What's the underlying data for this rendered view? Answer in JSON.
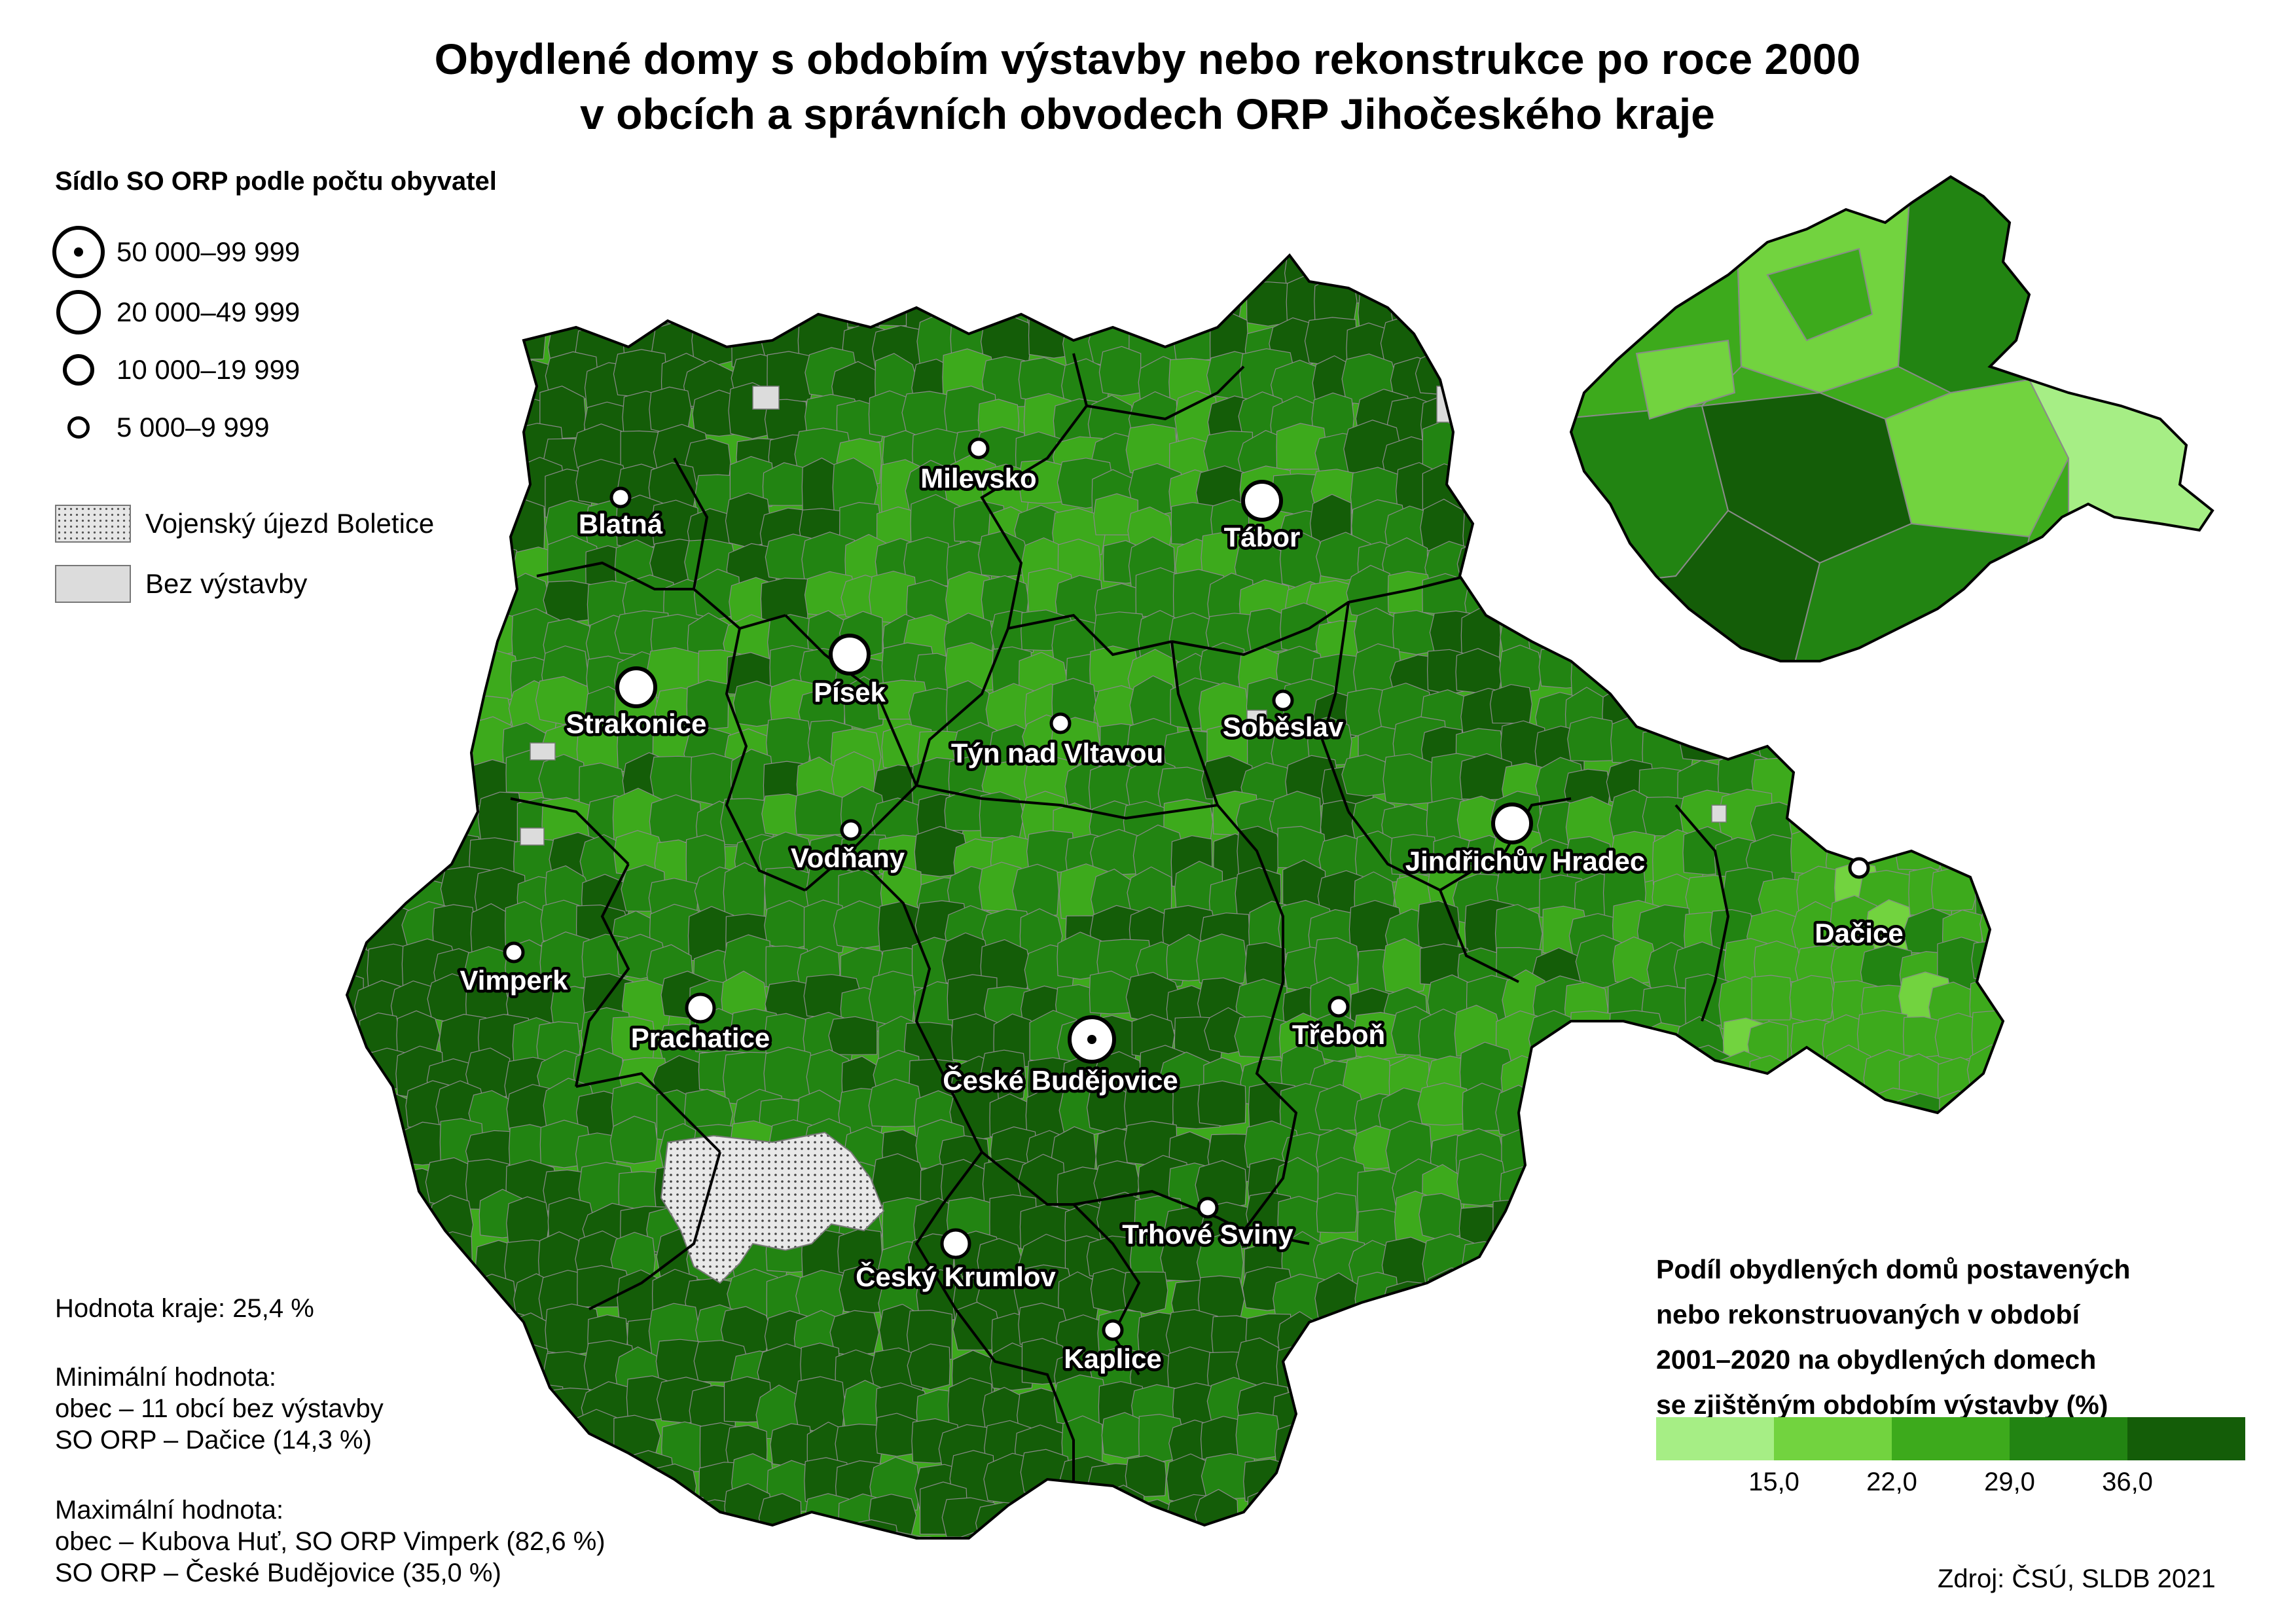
{
  "title": {
    "line1": "Obydlené domy s obdobím výstavby nebo rekonstrukce po roce 2000",
    "line2": "v obcích a správních obvodech ORP Jihočeského kraje"
  },
  "size_legend": {
    "heading": "Sídlo SO ORP podle počtu obyvatel",
    "items": [
      {
        "label": "50 000–99 999"
      },
      {
        "label": "20 000–49 999"
      },
      {
        "label": "10 000–19 999"
      },
      {
        "label": "5 000–9 999"
      }
    ]
  },
  "area_legend": {
    "boletice": "Vojenský újezd Boletice",
    "no_construction": "Bez výstavby"
  },
  "stats": {
    "region_value": "Hodnota kraje: 25,4 %",
    "min_heading": "Minimální hodnota:",
    "min_municipality": "obec – 11 obcí bez výstavby",
    "min_orp": "SO ORP – Dačice (14,3 %)",
    "max_heading": "Maximální hodnota:",
    "max_municipality": "obec – Kubova Huť, SO ORP Vimperk (82,6 %)",
    "max_orp": "SO ORP – České Budějovice (35,0 %)"
  },
  "color_scale": {
    "heading_lines": [
      "Podíl obydlených domů postavených",
      "nebo rekonstruovaných v období",
      "2001–2020 na obydlených domech",
      "se zjištěným obdobím výstavby (%)"
    ],
    "thresholds": [
      "15,0",
      "22,0",
      "29,0",
      "36,0"
    ],
    "colors": [
      "#a6ee85",
      "#72d33f",
      "#3daa1c",
      "#228412",
      "#145d08"
    ]
  },
  "cities": [
    {
      "name": "České Budějovice",
      "class": "50 000–99 999"
    },
    {
      "name": "Tábor",
      "class": "20 000–49 999"
    },
    {
      "name": "Písek",
      "class": "20 000–49 999"
    },
    {
      "name": "Strakonice",
      "class": "20 000–49 999"
    },
    {
      "name": "Jindřichův Hradec",
      "class": "20 000–49 999"
    },
    {
      "name": "Český Krumlov",
      "class": "10 000–19 999"
    },
    {
      "name": "Prachatice",
      "class": "10 000–19 999"
    },
    {
      "name": "Milevsko",
      "class": "5 000–9 999"
    },
    {
      "name": "Blatná",
      "class": "5 000–9 999"
    },
    {
      "name": "Vimperk",
      "class": "5 000–9 999"
    },
    {
      "name": "Vodňany",
      "class": "5 000–9 999"
    },
    {
      "name": "Týn nad Vltavou",
      "class": "5 000–9 999"
    },
    {
      "name": "Soběslav",
      "class": "5 000–9 999"
    },
    {
      "name": "Dačice",
      "class": "5 000–9 999"
    },
    {
      "name": "Třeboň",
      "class": "5 000–9 999"
    },
    {
      "name": "Trhové Sviny",
      "class": "5 000–9 999"
    },
    {
      "name": "Kaplice",
      "class": "5 000–9 999"
    }
  ],
  "source": "Zdroj: ČSÚ, SLDB 2021"
}
